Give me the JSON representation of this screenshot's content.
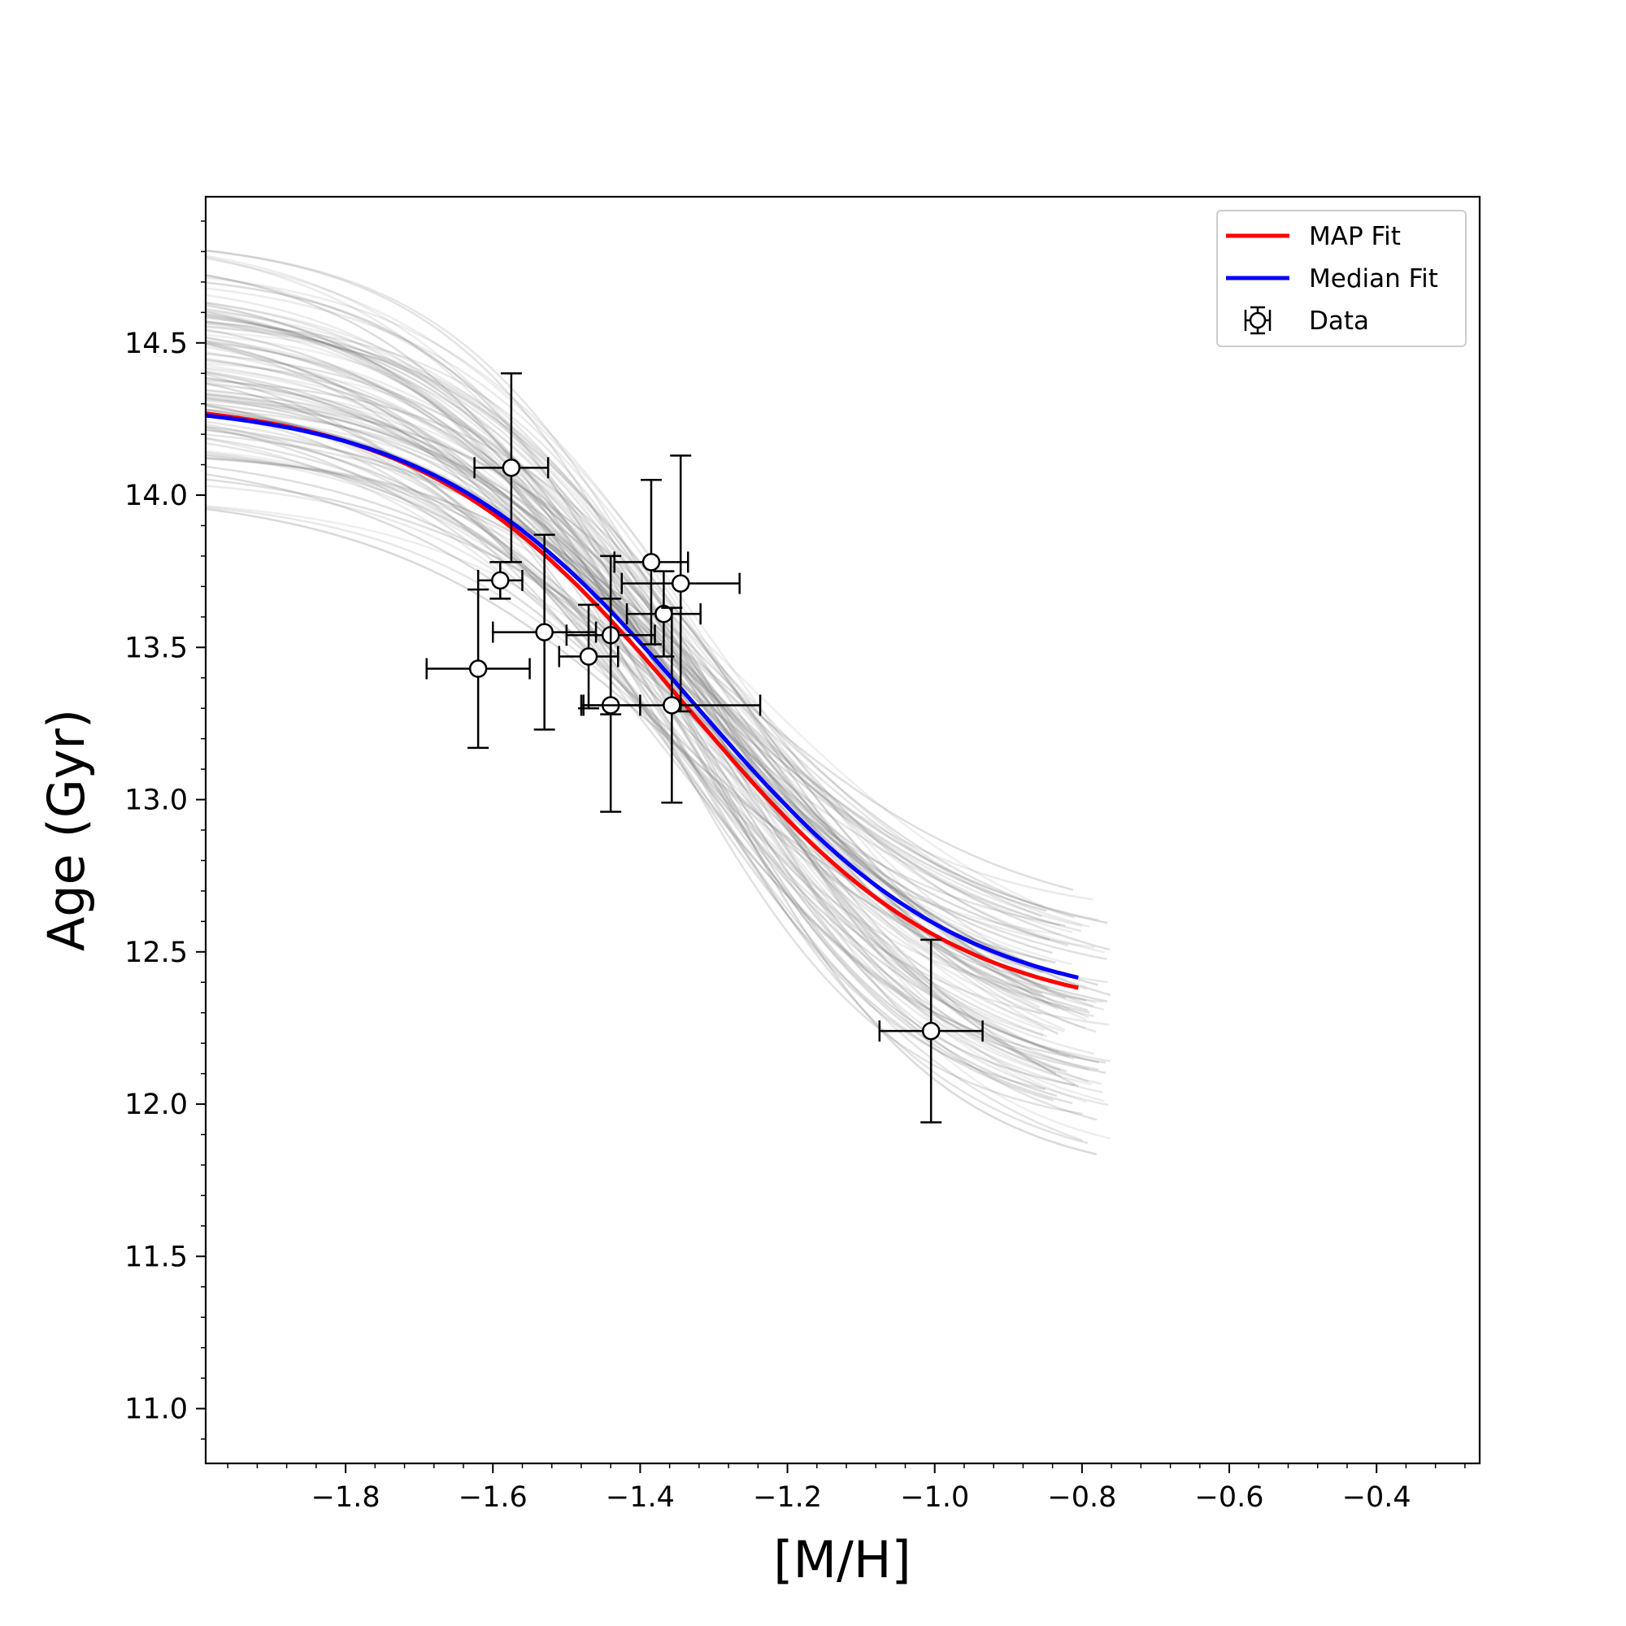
{
  "chart_data": {
    "type": "scatter",
    "title": "",
    "xlabel": "[M/H]",
    "ylabel": "Age (Gyr)",
    "xlim": [
      -1.99,
      -0.26
    ],
    "ylim": [
      10.82,
      14.98
    ],
    "xticks": [
      -1.8,
      -1.6,
      -1.4,
      -1.2,
      -1.0,
      -0.8,
      -0.6,
      -0.4
    ],
    "xtick_labels": [
      "−1.8",
      "−1.6",
      "−1.4",
      "−1.2",
      "−1.0",
      "−0.8",
      "−0.6",
      "−0.4"
    ],
    "yticks": [
      11.0,
      11.5,
      12.0,
      12.5,
      13.0,
      13.5,
      14.0,
      14.5
    ],
    "ytick_labels": [
      "11.0",
      "11.5",
      "12.0",
      "12.5",
      "13.0",
      "13.5",
      "14.0",
      "14.5"
    ],
    "legend": {
      "location": "top-right",
      "entries": [
        {
          "label": "MAP Fit",
          "kind": "line",
          "color": "#ff0000"
        },
        {
          "label": "Median Fit",
          "kind": "line",
          "color": "#0000ff"
        },
        {
          "label": "Data",
          "kind": "errorbar-marker",
          "color": "#000000"
        }
      ]
    },
    "data": {
      "name": "Data",
      "points": [
        {
          "x": -1.575,
          "y": 14.09,
          "xerr": 0.05,
          "yerr": 0.31
        },
        {
          "x": -1.59,
          "y": 13.72,
          "xerr": 0.03,
          "yerr": 0.06
        },
        {
          "x": -1.62,
          "y": 13.43,
          "xerr": 0.07,
          "yerr": 0.26
        },
        {
          "x": -1.53,
          "y": 13.55,
          "xerr": 0.07,
          "yerr": 0.32
        },
        {
          "x": -1.47,
          "y": 13.47,
          "xerr": 0.04,
          "yerr": 0.17
        },
        {
          "x": -1.44,
          "y": 13.54,
          "xerr": 0.06,
          "yerr": 0.26
        },
        {
          "x": -1.44,
          "y": 13.31,
          "xerr": 0.04,
          "yerr": 0.35
        },
        {
          "x": -1.385,
          "y": 13.78,
          "xerr": 0.05,
          "yerr": 0.27
        },
        {
          "x": -1.368,
          "y": 13.61,
          "xerr": 0.05,
          "yerr": 0.14
        },
        {
          "x": -1.345,
          "y": 13.71,
          "xerr": 0.08,
          "yerr": 0.42
        },
        {
          "x": -1.357,
          "y": 13.31,
          "xerr": 0.12,
          "yerr": 0.32
        },
        {
          "x": -1.005,
          "y": 12.24,
          "xerr": 0.07,
          "yerr": 0.3
        }
      ]
    },
    "fits": [
      {
        "name": "MAP Fit",
        "color": "#ff0000",
        "x_range": [
          -1.99,
          -0.805
        ],
        "A": 13.3,
        "B": 1.02,
        "x0": -1.335,
        "s": 0.36
      },
      {
        "name": "Median Fit",
        "color": "#0000ff",
        "x_range": [
          -1.99,
          -0.805
        ],
        "A": 13.31,
        "B": 1.0,
        "x0": -1.325,
        "s": 0.36
      }
    ],
    "posterior_samples": {
      "color": "#808080",
      "count": 100,
      "x_range": [
        -1.99,
        -0.76
      ],
      "A_range": [
        13.15,
        13.45
      ],
      "B_range": [
        0.8,
        1.5
      ],
      "x0_range": [
        -1.38,
        -1.27
      ],
      "s_range": [
        0.3,
        0.44
      ]
    }
  }
}
